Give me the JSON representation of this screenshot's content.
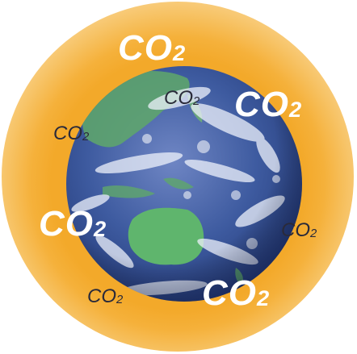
{
  "labels": {
    "co2_top": {
      "main": "CO",
      "sub": "2"
    },
    "co2_upper_center": {
      "main": "CO",
      "sub": "2"
    },
    "co2_upper_right": {
      "main": "CO",
      "sub": "2"
    },
    "co2_left": {
      "main": "CO",
      "sub": "2"
    },
    "co2_mid_left": {
      "main": "CO",
      "sub": "2"
    },
    "co2_right": {
      "main": "CO",
      "sub": "2"
    },
    "co2_bottom_left": {
      "main": "CO",
      "sub": "2"
    },
    "co2_bottom_right": {
      "main": "CO",
      "sub": "2"
    }
  },
  "colors": {
    "atmosphere": "#f3a92a",
    "ocean": "#3e5ba0",
    "land": "#5fa86a",
    "label_large": "#ffffff",
    "label_small": "#2a2a3a"
  }
}
